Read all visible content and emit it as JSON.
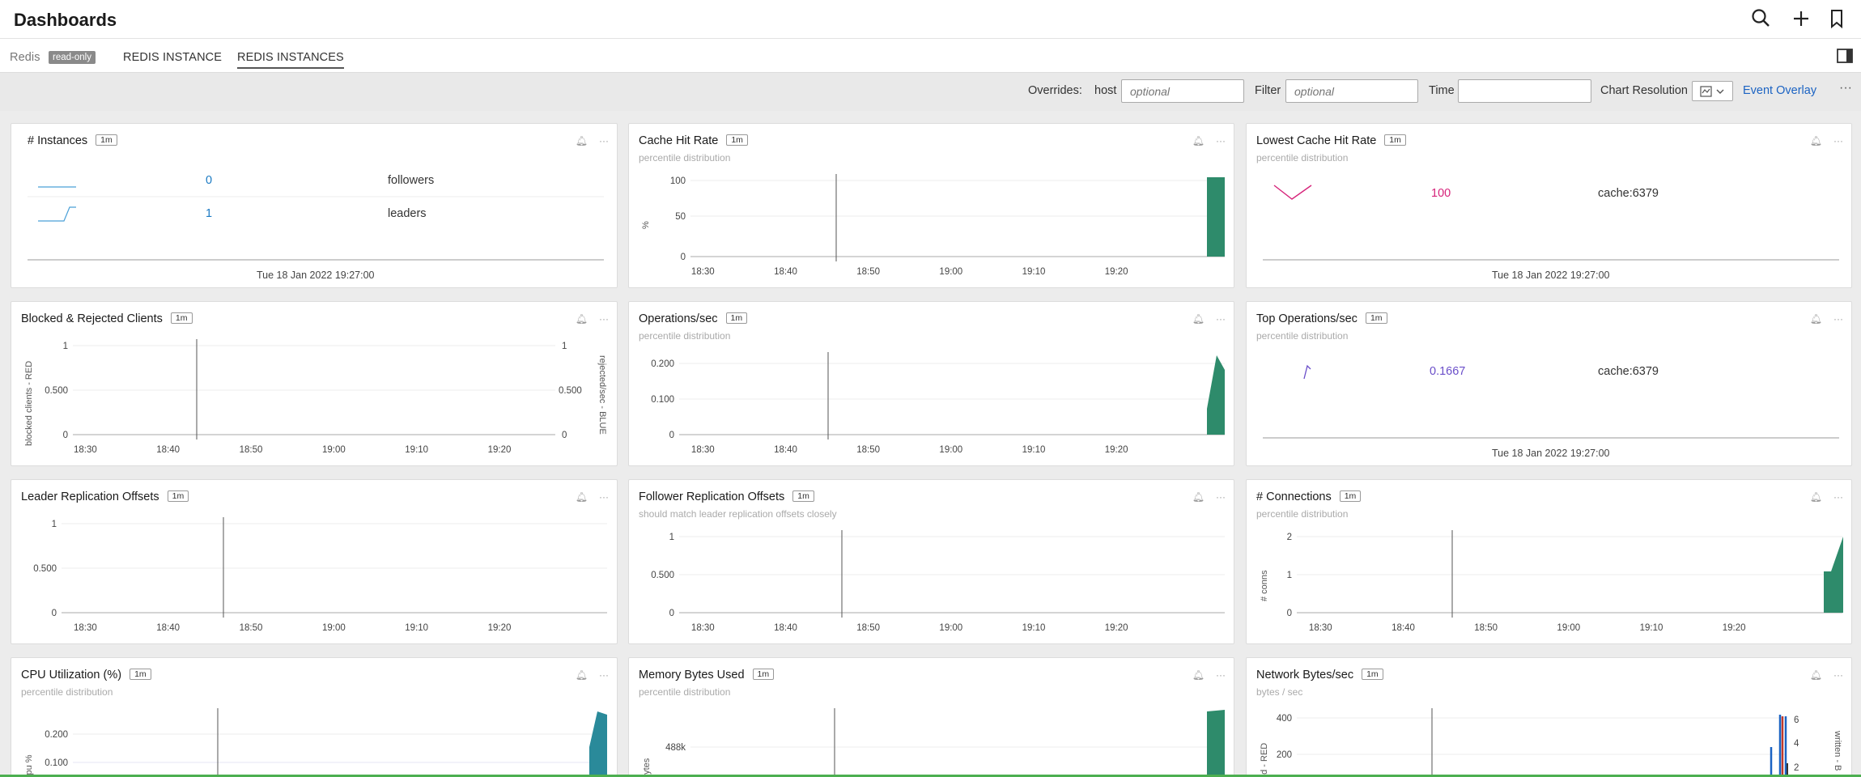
{
  "app": {
    "title": "Dashboards"
  },
  "tabs": {
    "group": "Redis",
    "badge": "read-only",
    "tab1": "REDIS INSTANCE",
    "tab2": "REDIS INSTANCES"
  },
  "filters": {
    "overrides_label": "Overrides:",
    "host_label": "host",
    "host_placeholder": "optional",
    "filter_label": "Filter",
    "filter_placeholder": "optional",
    "time_label": "Time",
    "time_value": "",
    "resolution_label": "Chart Resolution",
    "event_overlay": "Event Overlay"
  },
  "colors": {
    "accent": "#1b63c3",
    "area": "#2e8b6b",
    "cpu": "#2a8a9a",
    "pink": "#d6237a",
    "purple": "#6a4ec9"
  },
  "time_ticks": [
    "18:30",
    "18:40",
    "18:50",
    "19:00",
    "19:10",
    "19:20"
  ],
  "panels": {
    "instances": {
      "title": "# Instances",
      "res": "1m",
      "rows": [
        {
          "value": "0",
          "label": "followers"
        },
        {
          "value": "1",
          "label": "leaders"
        }
      ],
      "timestamp": "Tue 18 Jan 2022 19:27:00"
    },
    "cache_hit": {
      "title": "Cache Hit Rate",
      "res": "1m",
      "subtitle": "percentile distribution",
      "ylabel": "%",
      "yticks": [
        "100",
        "50",
        "0"
      ]
    },
    "lowest_cache": {
      "title": "Lowest Cache Hit Rate",
      "res": "1m",
      "subtitle": "percentile distribution",
      "value": "100",
      "label": "cache:6379",
      "timestamp": "Tue 18 Jan 2022 19:27:00"
    },
    "blocked": {
      "title": "Blocked & Rejected Clients",
      "res": "1m",
      "ylabel_left": "blocked clients - RED",
      "ylabel_right": "rejected/sec - BLUE",
      "yticks": [
        "1",
        "0.500",
        "0"
      ]
    },
    "ops": {
      "title": "Operations/sec",
      "res": "1m",
      "subtitle": "percentile distribution",
      "yticks": [
        "0.200",
        "0.100",
        "0"
      ]
    },
    "top_ops": {
      "title": "Top Operations/sec",
      "res": "1m",
      "subtitle": "percentile distribution",
      "value": "0.1667",
      "label": "cache:6379",
      "timestamp": "Tue 18 Jan 2022 19:27:00"
    },
    "leader_repl": {
      "title": "Leader Replication Offsets",
      "res": "1m",
      "yticks": [
        "1",
        "0.500",
        "0"
      ]
    },
    "follower_repl": {
      "title": "Follower Replication Offsets",
      "res": "1m",
      "subtitle": "should match leader replication offsets closely",
      "yticks": [
        "1",
        "0.500",
        "0"
      ]
    },
    "connections": {
      "title": "# Connections",
      "res": "1m",
      "subtitle": "percentile distribution",
      "ylabel": "# conns",
      "yticks": [
        "2",
        "1",
        "0"
      ]
    },
    "cpu": {
      "title": "CPU Utilization (%)",
      "res": "1m",
      "subtitle": "percentile distribution",
      "ylabel": "cpu %",
      "yticks": [
        "0.200",
        "0.100"
      ]
    },
    "memory": {
      "title": "Memory Bytes Used",
      "res": "1m",
      "subtitle": "percentile distribution",
      "ylabel": "bytes",
      "yticks": [
        "488k"
      ]
    },
    "network": {
      "title": "Network Bytes/sec",
      "res": "1m",
      "subtitle": "bytes / sec",
      "ylabel_left": "ad - RED",
      "ylabel_right": "written - B",
      "yticks": [
        "400",
        "200"
      ],
      "yticks_right": [
        "6",
        "4",
        "2"
      ]
    }
  }
}
